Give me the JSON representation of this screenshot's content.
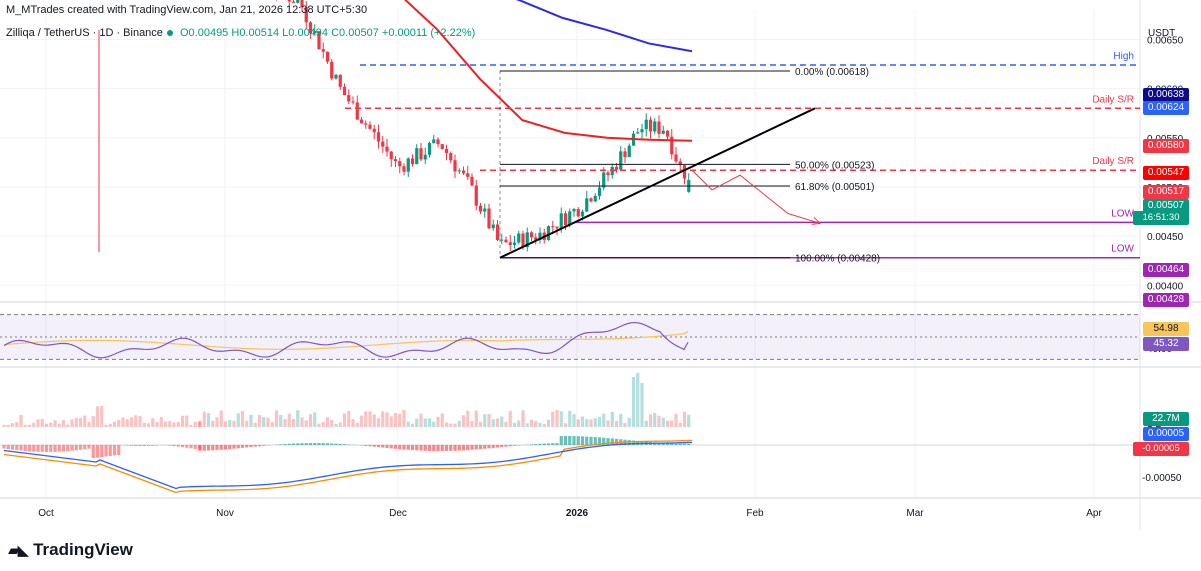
{
  "header": {
    "author_line": "M_MTrades created with TradingView.com, Jan 21, 2026 12:38 UTC+5:30",
    "pair": "Zilliqa / TetherUS · 1D · Binance",
    "open": "O0.00495",
    "high": "H0.00514",
    "low": "L0.00494",
    "close": "C0.00507",
    "change": "+0.00011 (+2.22%)"
  },
  "currency": "USDT",
  "branding": "TradingView",
  "price_scale_labels": [
    "0.00650",
    "0.00600",
    "0.00550",
    "0.00500",
    "0.00450",
    "0.00400"
  ],
  "price_tags": [
    {
      "value": "0.00638",
      "color": "#0c0c8a"
    },
    {
      "value": "0.00624",
      "color": "#2962ff"
    },
    {
      "value": "0.00580",
      "color": "#f23645"
    },
    {
      "value": "0.00547",
      "color": "#ff0000"
    },
    {
      "value": "0.00517",
      "color": "#f23645"
    },
    {
      "value": "0.00507",
      "color": "#089981"
    },
    {
      "value": "16:51:30",
      "color": "#089981"
    },
    {
      "value": "0.00464",
      "color": "#9c27b0"
    },
    {
      "value": "0.00428",
      "color": "#9c27b0"
    }
  ],
  "level_labels": [
    {
      "text": "High",
      "color": "#2962ff"
    },
    {
      "text": "Daily S/R",
      "color": "#f23645"
    },
    {
      "text": "Daily S/R",
      "color": "#f23645"
    },
    {
      "text": "LOW",
      "color": "#9c27b0"
    },
    {
      "text": "LOW",
      "color": "#9c27b0"
    }
  ],
  "chart_data": [
    {
      "type": "candlestick",
      "title": "Zilliqa / TetherUS",
      "timeframe": "1D",
      "exchange": "Binance",
      "x_tick_labels": [
        "Oct",
        "Nov",
        "Dec",
        "2026",
        "Feb",
        "Mar",
        "Apr"
      ],
      "ylim": [
        0.00385,
        0.0068
      ],
      "ohlc": {
        "open": 0.00495,
        "high": 0.00514,
        "low": 0.00494,
        "close": 0.00507
      },
      "ma_series": [
        {
          "color": "#2a2ae8",
          "values": [
            0.00775,
            0.00725,
            0.00705,
            0.0069,
            0.00672,
            0.0066,
            0.00646,
            0.00638
          ]
        },
        {
          "color": "#f02020",
          "values": [
            0.007,
            0.0066,
            0.0061,
            0.00568,
            0.00555,
            0.0055,
            0.00548,
            0.00547
          ]
        }
      ],
      "levels": [
        {
          "label": "High",
          "value": 0.00624
        },
        {
          "label": "Daily S/R",
          "value": 0.0058
        },
        {
          "label": "Daily S/R",
          "value": 0.00517
        },
        {
          "label": "LOW",
          "value": 0.00464
        },
        {
          "label": "LOW",
          "value": 0.00428
        }
      ],
      "fibonacci": [
        {
          "label": "0.00% (0.00618)",
          "value": 0.00618
        },
        {
          "label": "50.00% (0.00523)",
          "value": 0.00523
        },
        {
          "label": "61.80% (0.00501)",
          "value": 0.00501
        },
        {
          "label": "100.00% (0.00428)",
          "value": 0.00428
        }
      ],
      "trendline": {
        "from": 0.00428,
        "to": 0.0058
      },
      "projection_path": [
        0.00517,
        0.00497,
        0.00512,
        0.00473,
        0.00463
      ]
    },
    {
      "type": "line",
      "indicator": "RSI",
      "tick_labels": [
        "60.00",
        "40.00"
      ],
      "rsi": 45.32,
      "rsi_ma": 54.98
    },
    {
      "type": "bar",
      "indicator": "Volume",
      "tick_label": "1 B",
      "value_label": "22.7M"
    },
    {
      "type": "line",
      "indicator": "MACD",
      "tick_label": "-0.00050",
      "values": [
        "0.00005",
        "-0.00005"
      ]
    }
  ]
}
